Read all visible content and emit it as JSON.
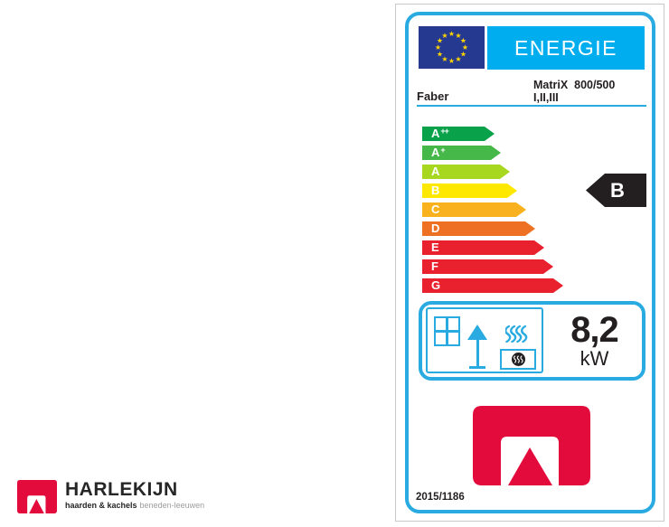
{
  "label": {
    "accent_blue": "#29abe2",
    "header": {
      "energie_text": "ENERGIE",
      "energie_bg": "#00aeef",
      "flag": {
        "background": "#24398f",
        "star_color": "#ffd500",
        "star_icon": "star-icon"
      }
    },
    "brand": "Faber",
    "model_line1": "MatriX  800/500",
    "model_line2": "I,II,III",
    "ratings": {
      "rows": [
        {
          "label": "A",
          "sup": "++",
          "color": "#0aa14b"
        },
        {
          "label": "A",
          "sup": "+",
          "color": "#46b749"
        },
        {
          "label": "A",
          "sup": "",
          "color": "#a8d71f"
        },
        {
          "label": "B",
          "sup": "",
          "color": "#ffe800"
        },
        {
          "label": "C",
          "sup": "",
          "color": "#f9b21d"
        },
        {
          "label": "D",
          "sup": "",
          "color": "#ee7123"
        },
        {
          "label": "E",
          "sup": "",
          "color": "#e9202e"
        },
        {
          "label": "F",
          "sup": "",
          "color": "#e9202e"
        },
        {
          "label": "G",
          "sup": "",
          "color": "#e9202e"
        }
      ]
    },
    "selected_rating": {
      "label": "B",
      "color": "#231f20",
      "text_color": "#ffffff"
    },
    "pictograms": [
      "window-icon",
      "floor-lamp-icon",
      "convection-heater-icon"
    ],
    "power": {
      "value": "8,2",
      "unit": "kW"
    },
    "logo_red": "#e30a3c",
    "regulation": "2015/1186"
  },
  "footer_logo": {
    "name": "HARLEKIJN",
    "tagline_bold": "haarden & kachels",
    "tagline_gray": "beneden-leeuwen",
    "red": "#e30a3c",
    "text_color": "#262626",
    "gray_color": "#9c9c9c"
  }
}
